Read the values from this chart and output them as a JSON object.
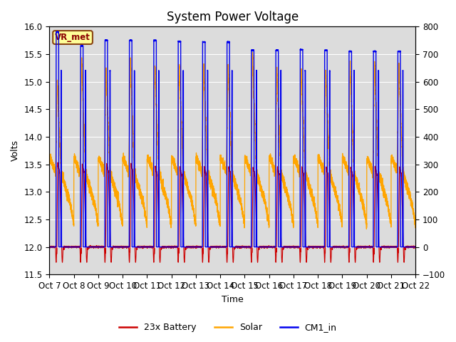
{
  "title": "System Power Voltage",
  "xlabel": "Time",
  "ylabel_left": "Volts",
  "ylim_left": [
    11.5,
    16.0
  ],
  "ylim_right": [
    -100,
    800
  ],
  "yticks_left": [
    11.5,
    12.0,
    12.5,
    13.0,
    13.5,
    14.0,
    14.5,
    15.0,
    15.5,
    16.0
  ],
  "yticks_right": [
    -100,
    0,
    100,
    200,
    300,
    400,
    500,
    600,
    700,
    800
  ],
  "x_labels": [
    "Oct 7",
    "Oct 8",
    "Oct 9",
    "Oct 10",
    "Oct 11",
    "Oct 12",
    "Oct 13",
    "Oct 14",
    "Oct 15",
    "Oct 16",
    "Oct 17",
    "Oct 18",
    "Oct 19",
    "Oct 20",
    "Oct 21",
    "Oct 22"
  ],
  "num_days": 15,
  "legend_labels": [
    "23x Battery",
    "Solar",
    "CM1_in"
  ],
  "legend_colors": [
    "#cc0000",
    "#ffa500",
    "#0000ee"
  ],
  "vr_met_label": "VR_met",
  "background_color": "#ffffff",
  "plot_bg_color": "#dcdcdc",
  "grid_color": "#ffffff",
  "title_fontsize": 12,
  "axis_fontsize": 9,
  "tick_fontsize": 8.5,
  "cm1_peaks": [
    15.9,
    15.65,
    15.75,
    15.75,
    15.75,
    15.73,
    15.72,
    15.72,
    15.57,
    15.57,
    15.58,
    15.57,
    15.55,
    15.55,
    15.55
  ],
  "solar_peaks": [
    15.05,
    15.4,
    15.22,
    15.4,
    15.35,
    15.35,
    15.35,
    15.33,
    15.55,
    15.22,
    15.22,
    15.22,
    15.35,
    15.35,
    15.35
  ],
  "battery_peaks": [
    13.5,
    13.5,
    13.5,
    13.5,
    13.45,
    13.45,
    13.45,
    13.45,
    13.45,
    13.45,
    13.45,
    13.45,
    13.45,
    13.45,
    13.45
  ]
}
